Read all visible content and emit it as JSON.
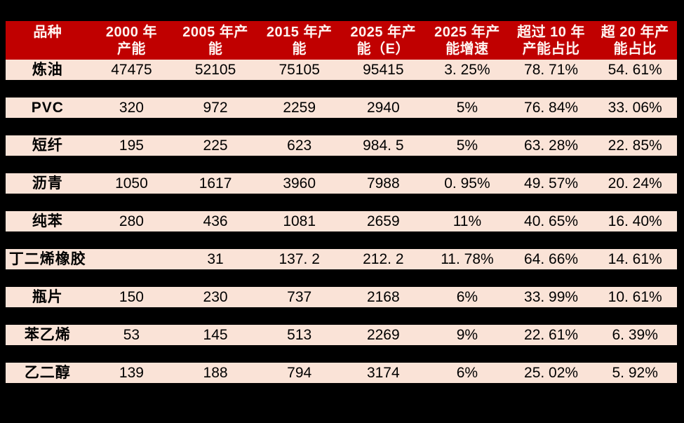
{
  "page": {
    "background_color": "#000000",
    "accent_color": "#C00000",
    "row_background_color": "#FAE3D7"
  },
  "table": {
    "header": {
      "col0": "品种",
      "col1": "2000 年\n产能",
      "col2": "2005 年产\n能",
      "col3": "2015 年产\n能",
      "col4": "2025 年产\n能（E）",
      "col5": "2025 年产\n能增速",
      "col6": "超过 10 年\n产能占比",
      "col7": "超 20 年产\n能占比"
    },
    "rows": [
      {
        "cells": [
          "炼油",
          "47475",
          "52105",
          "75105",
          "95415",
          "3. 25%",
          "78. 71%",
          "54. 61%"
        ]
      },
      {
        "cells": [
          "PVC",
          "320",
          "972",
          "2259",
          "2940",
          "5%",
          "76. 84%",
          "33. 06%"
        ]
      },
      {
        "cells": [
          "短纤",
          "195",
          "225",
          "623",
          "984. 5",
          "5%",
          "63. 28%",
          "22. 85%"
        ]
      },
      {
        "cells": [
          "沥青",
          "1050",
          "1617",
          "3960",
          "7988",
          "0. 95%",
          "49. 57%",
          "20. 24%"
        ]
      },
      {
        "cells": [
          "纯苯",
          "280",
          "436",
          "1081",
          "2659",
          "11%",
          "40. 65%",
          "16. 40%"
        ]
      },
      {
        "cells": [
          "丁二烯橡胶",
          "",
          "31",
          "137. 2",
          "212. 2",
          "11. 78%",
          "64. 66%",
          "14. 61%"
        ]
      },
      {
        "cells": [
          "瓶片",
          "150",
          "230",
          "737",
          "2168",
          "6%",
          "33. 99%",
          "10. 61%"
        ]
      },
      {
        "cells": [
          "苯乙烯",
          "53",
          "145",
          "513",
          "2269",
          "9%",
          "22. 61%",
          "6. 39%"
        ]
      },
      {
        "cells": [
          "乙二醇",
          "139",
          "188",
          "794",
          "3174",
          "6%",
          "25. 02%",
          "5. 92%"
        ]
      }
    ]
  },
  "chart_data": {
    "type": "table",
    "title": "",
    "columns": [
      "品种",
      "2000 年产能",
      "2005 年产能",
      "2015 年产能",
      "2025 年产能（E）",
      "2025 年产能增速",
      "超过 10 年产能占比",
      "超 20 年产能占比"
    ],
    "rows": [
      [
        "炼油",
        47475,
        52105,
        75105,
        95415,
        "3.25%",
        "78.71%",
        "54.61%"
      ],
      [
        "PVC",
        320,
        972,
        2259,
        2940,
        "5%",
        "76.84%",
        "33.06%"
      ],
      [
        "短纤",
        195,
        225,
        623,
        984.5,
        "5%",
        "63.28%",
        "22.85%"
      ],
      [
        "沥青",
        1050,
        1617,
        3960,
        7988,
        "0.95%",
        "49.57%",
        "20.24%"
      ],
      [
        "纯苯",
        280,
        436,
        1081,
        2659,
        "11%",
        "40.65%",
        "16.40%"
      ],
      [
        "丁二烯橡胶",
        null,
        31,
        137.2,
        212.2,
        "11.78%",
        "64.66%",
        "14.61%"
      ],
      [
        "瓶片",
        150,
        230,
        737,
        2168,
        "6%",
        "33.99%",
        "10.61%"
      ],
      [
        "苯乙烯",
        53,
        145,
        513,
        2269,
        "9%",
        "22.61%",
        "6.39%"
      ],
      [
        "乙二醇",
        139,
        188,
        794,
        3174,
        "6%",
        "25.02%",
        "5.92%"
      ]
    ],
    "layout": {
      "grid": false,
      "header_background": "#C00000",
      "header_text_color": "#FFFFFF",
      "row_background": "#FAE3D7",
      "row_text_color": "#000000",
      "page_background": "#000000"
    }
  }
}
